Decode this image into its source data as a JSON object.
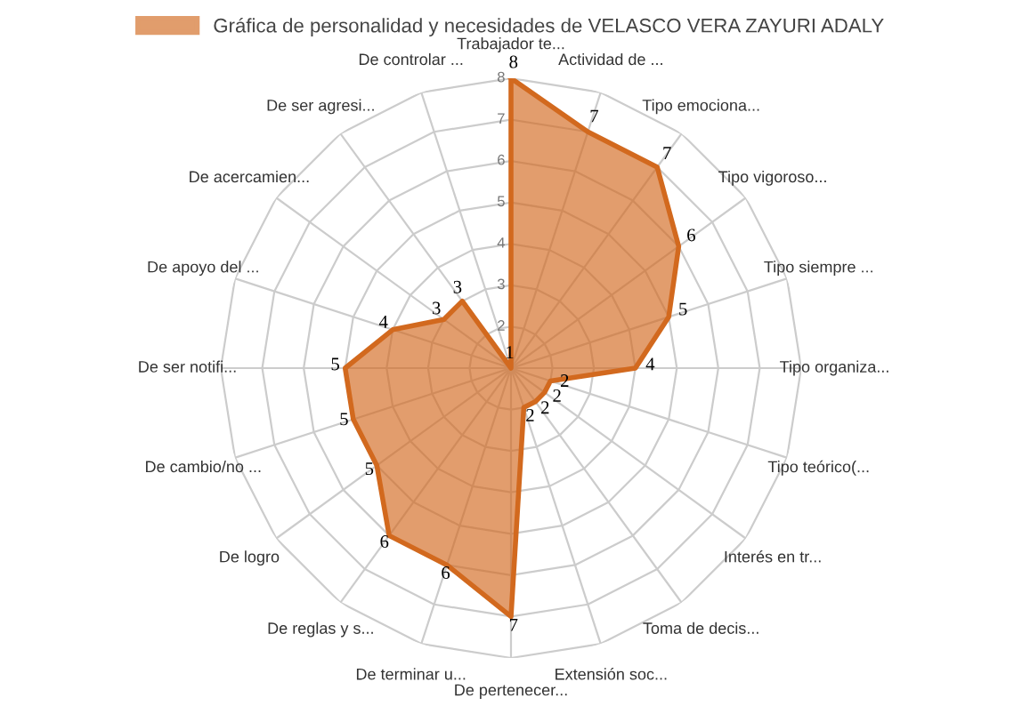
{
  "chart_data": {
    "type": "radar",
    "categories": [
      "Trabajador te...",
      "Actividad de ...",
      "Tipo emociona...",
      "Tipo vigoroso...",
      "Tipo siempre ...",
      "Tipo organiza...",
      "Tipo teórico(...",
      "Interés en tr...",
      "Toma de decis...",
      "Extensión soc...",
      "De pertenecer...",
      "De terminar u...",
      "De reglas y s...",
      "De logro",
      "De cambio/no ...",
      "De ser notifi...",
      "De apoyo del ...",
      "De acercamien...",
      "De ser agresi...",
      "De controlar ..."
    ],
    "series": [
      {
        "name": "Gráfica de personalidad y necesidades de VELASCO VERA ZAYURI ADALY",
        "color": "#d2691e",
        "values": [
          8,
          7,
          7,
          6,
          5,
          4,
          2,
          2,
          2,
          2,
          7,
          6,
          6,
          5,
          5,
          5,
          4,
          3,
          3,
          1
        ]
      }
    ],
    "ylim": [
      1,
      8
    ],
    "yticks": [
      2,
      3,
      4,
      5,
      6,
      7,
      8
    ],
    "data_labels": true,
    "legend": "top",
    "grid": true
  }
}
